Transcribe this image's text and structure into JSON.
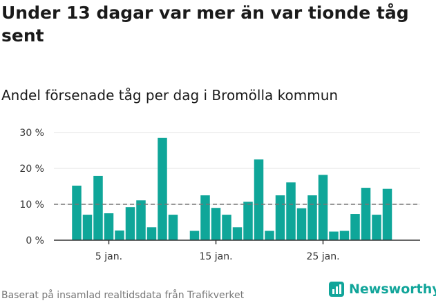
{
  "title": "Under 13 dagar var mer än var tionde tåg sent",
  "subtitle": "Andel försenade tåg per dag i Bromölla kommun",
  "source": "Baserat på insamlad realtidsdata från Trafikverket",
  "logo": {
    "text": "Newsworthy",
    "color": "#11a59a"
  },
  "chart_data": {
    "type": "bar",
    "bar_color": "#0fa699",
    "reference_line": {
      "value": 10,
      "style": "dashed",
      "color": "#777777"
    },
    "ylim": [
      0,
      30
    ],
    "yticks": [
      {
        "value": 0,
        "label": "0 %"
      },
      {
        "value": 10,
        "label": "10 %"
      },
      {
        "value": 20,
        "label": "20 %"
      },
      {
        "value": 30,
        "label": "30 %"
      }
    ],
    "xticks": [
      {
        "day": 5,
        "label": "5 jan."
      },
      {
        "day": 15,
        "label": "15 jan."
      },
      {
        "day": 25,
        "label": "25 jan."
      }
    ],
    "x_range": [
      1,
      31
    ],
    "grid": true,
    "series": [
      {
        "days": [
          2,
          3,
          4,
          5,
          6,
          7,
          8,
          9,
          10,
          11,
          13,
          14,
          15,
          16,
          17,
          18,
          19,
          20,
          21,
          22,
          23,
          24,
          25,
          26,
          27,
          28,
          29,
          30,
          31
        ],
        "values": [
          15.2,
          7.1,
          17.9,
          7.5,
          2.7,
          9.2,
          11.1,
          3.6,
          28.5,
          7.1,
          2.6,
          12.5,
          9.0,
          7.1,
          3.6,
          10.7,
          22.5,
          2.6,
          12.5,
          16.1,
          8.9,
          12.5,
          18.2,
          2.4,
          2.6,
          7.3,
          14.6,
          7.1,
          14.3
        ]
      }
    ]
  }
}
